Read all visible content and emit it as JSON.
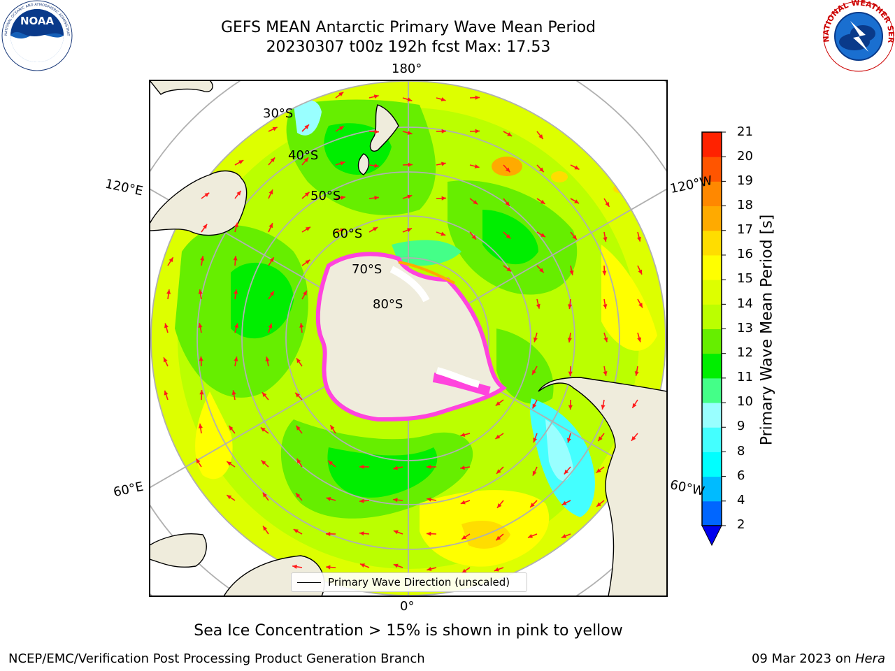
{
  "header": {
    "title_line1": "GEFS MEAN Antarctic Primary Wave Mean Period",
    "title_line2": "20230307 t00z 192h fcst   Max: 17.53"
  },
  "logos": {
    "left": "NOAA",
    "left_ring_text": "NATIONAL OCEANIC AND ATMOSPHERIC ADMINISTRATION · U.S. DEPARTMENT OF COMMERCE",
    "right_ring_text": "NATIONAL WEATHER SERVICE"
  },
  "map": {
    "projection": "south-polar-stereographic",
    "longitude_labels": {
      "top": "180°",
      "bottom": "0°",
      "upper_left": "120°E",
      "lower_left": "60°E",
      "upper_right": "120°W",
      "lower_right": "60°W"
    },
    "latitude_labels": [
      "30°S",
      "40°S",
      "50°S",
      "60°S",
      "70°S",
      "80°S"
    ],
    "land_color": "#efecdc",
    "arrow_color": "#ff1a1a",
    "sea_ice_color": "#ff44dd",
    "legend_label": "Primary Wave Direction (unscaled)"
  },
  "colorbar": {
    "label": "Primary Wave Mean Period [s]",
    "ticks": [
      "2",
      "4",
      "6",
      "8",
      "9",
      "10",
      "11",
      "12",
      "13",
      "14",
      "15",
      "16",
      "17",
      "18",
      "19",
      "20",
      "21"
    ],
    "colors": [
      "#0066ff",
      "#00bbff",
      "#00ffff",
      "#44ffff",
      "#99ffff",
      "#44ff88",
      "#00ee00",
      "#66ee00",
      "#bbff00",
      "#ddff00",
      "#ffff00",
      "#ffdd00",
      "#ffaa00",
      "#ff8800",
      "#ff5500",
      "#ff2200"
    ],
    "extend_min_color": "#0000ee"
  },
  "footnote": "Sea Ice Concentration > 15% is shown in pink to yellow",
  "footer": {
    "credit": "NCEP/EMC/Verification Post Processing Product Generation Branch",
    "date": "09 Mar 2023 on ",
    "machine": "Hera"
  }
}
